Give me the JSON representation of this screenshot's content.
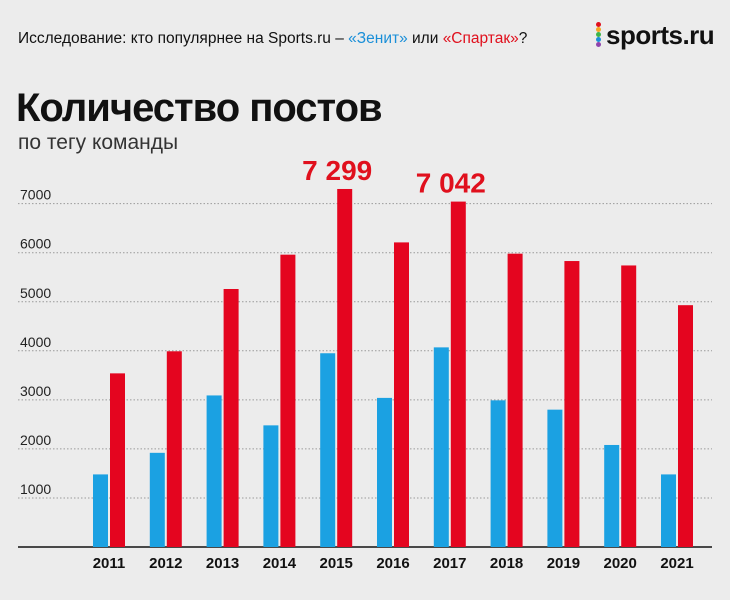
{
  "header": {
    "prefix": "Исследование: кто популярнее на Sports.ru – ",
    "zenit": "«Зенит»",
    "middle": " или ",
    "spartak": "«Спартак»",
    "suffix": "?"
  },
  "logo": {
    "text": "sports.ru",
    "dot_colors": [
      "#e0101d",
      "#f5a623",
      "#3db54a",
      "#1a8fd8",
      "#8e44ad"
    ]
  },
  "colors": {
    "zenit": "#1ba1e2",
    "spartak": "#e4051f",
    "grid": "#9a9a9a"
  },
  "chart_data": {
    "type": "bar",
    "title": "Количество постов",
    "subtitle": "по тегу команды",
    "categories": [
      "2011",
      "2012",
      "2013",
      "2014",
      "2015",
      "2016",
      "2017",
      "2018",
      "2019",
      "2020",
      "2021"
    ],
    "series": [
      {
        "name": "Зенит",
        "values": [
          1480,
          1920,
          3090,
          2480,
          3950,
          3040,
          4070,
          2990,
          2800,
          2080,
          1480
        ]
      },
      {
        "name": "Спартак",
        "values": [
          3540,
          3990,
          5260,
          5960,
          7299,
          6210,
          7042,
          5980,
          5830,
          5740,
          4930
        ]
      }
    ],
    "yticks": [
      1000,
      2000,
      3000,
      4000,
      5000,
      6000,
      7000
    ],
    "ylim": [
      0,
      7600
    ],
    "annotations": [
      {
        "category": "2015",
        "text": "7 299"
      },
      {
        "category": "2017",
        "text": "7 042"
      }
    ],
    "xlabel": "",
    "ylabel": ""
  }
}
